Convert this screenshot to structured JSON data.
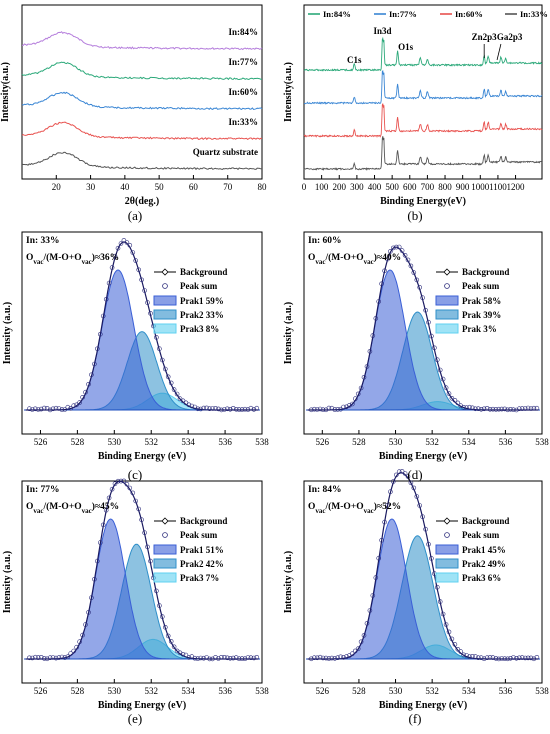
{
  "captions": [
    "(a)",
    "(b)",
    "(c)",
    "(d)",
    "(e)",
    "(f)"
  ],
  "chart_data": [
    {
      "type": "line",
      "xlabel": "2θ(deg.)",
      "ylabel": "Intensity(a.u.)",
      "xlim": [
        10,
        80
      ],
      "xticks": [
        20,
        30,
        40,
        50,
        60,
        70,
        80
      ],
      "grid": false,
      "series": [
        {
          "name": "In:84%",
          "color": "#b57edc",
          "offset": 4
        },
        {
          "name": "In:77%",
          "color": "#2ca97a",
          "offset": 3
        },
        {
          "name": "In:60%",
          "color": "#3a86d4",
          "offset": 2
        },
        {
          "name": "In:33%",
          "color": "#e8524f",
          "offset": 1
        },
        {
          "name": "Quartz substrate",
          "color": "#555555",
          "offset": 0
        }
      ],
      "peak_center": 22
    },
    {
      "type": "line",
      "xlabel": "Binding Energy(eV)",
      "ylabel": "Intensity(a.u.)",
      "xlim": [
        0,
        1350
      ],
      "xticks": [
        0,
        100,
        200,
        300,
        400,
        500,
        600,
        700,
        800,
        900,
        1000,
        1100,
        1200
      ],
      "legend": "top",
      "grid": false,
      "series": [
        {
          "name": "In:84%",
          "color": "#2ca97a",
          "offset": 3
        },
        {
          "name": "In:77%",
          "color": "#3a86d4",
          "offset": 2
        },
        {
          "name": "In:60%",
          "color": "#e8524f",
          "offset": 1
        },
        {
          "name": "In:33%",
          "color": "#555555",
          "offset": 0
        }
      ],
      "annotations": [
        {
          "text": "C1s",
          "x": 285
        },
        {
          "text": "In3d",
          "x": 445
        },
        {
          "text": "O1s",
          "x": 531
        },
        {
          "text": "Zn2p3",
          "x": 1022
        },
        {
          "text": "Ga2p3",
          "x": 1117
        }
      ]
    },
    {
      "type": "area",
      "title": "In:  33%",
      "ovac_ratio": "≈36%",
      "xlabel": "Binding Energy (eV)",
      "ylabel": "Intensity  (a.u.)",
      "xlim": [
        525,
        538
      ],
      "xticks": [
        526,
        528,
        530,
        532,
        534,
        536,
        538
      ],
      "legend": "top-right",
      "peaks": [
        {
          "name": "Prak1 59%",
          "center": 530.2,
          "height": 1.0,
          "sigma": 0.85
        },
        {
          "name": "Prak2 33%",
          "center": 531.5,
          "height": 0.56,
          "sigma": 0.8
        },
        {
          "name": "Prak3 8%",
          "center": 532.6,
          "height": 0.12,
          "sigma": 0.8
        }
      ]
    },
    {
      "type": "area",
      "title": "In:  60%",
      "ovac_ratio": "≈40%",
      "xlabel": "Binding Energy (eV)",
      "ylabel": "Intensity  (a.u.)",
      "xlim": [
        525,
        538
      ],
      "xticks": [
        526,
        528,
        530,
        532,
        534,
        536,
        538
      ],
      "legend": "top-right",
      "peaks": [
        {
          "name": "Prak 58%",
          "center": 529.7,
          "height": 1.0,
          "sigma": 0.82
        },
        {
          "name": "Prak 39%",
          "center": 531.2,
          "height": 0.7,
          "sigma": 0.8
        },
        {
          "name": "Prak 3%",
          "center": 532.3,
          "height": 0.06,
          "sigma": 0.8
        }
      ]
    },
    {
      "type": "area",
      "title": "In:  77%",
      "ovac_ratio": "≈45%",
      "xlabel": "Binding Energy (eV)",
      "ylabel": "Intensity (a.u.)",
      "xlim": [
        525,
        538
      ],
      "xticks": [
        526,
        528,
        530,
        532,
        534,
        536,
        538
      ],
      "legend": "top-right",
      "peaks": [
        {
          "name": "Prak1 51%",
          "center": 529.8,
          "height": 1.0,
          "sigma": 0.8
        },
        {
          "name": "Prak2 42%",
          "center": 531.2,
          "height": 0.82,
          "sigma": 0.8
        },
        {
          "name": "Prak3 7%",
          "center": 532.1,
          "height": 0.14,
          "sigma": 0.8
        }
      ]
    },
    {
      "type": "area",
      "title": "In:  84%",
      "ovac_ratio": "≈52%",
      "xlabel": "Binding Energy (eV)",
      "ylabel": "Intensity (a.u.)",
      "xlim": [
        525,
        538
      ],
      "xticks": [
        526,
        528,
        530,
        532,
        534,
        536,
        538
      ],
      "legend": "top-right",
      "peaks": [
        {
          "name": "Prak1 45%",
          "center": 529.8,
          "height": 1.0,
          "sigma": 0.8
        },
        {
          "name": "Prak2 49%",
          "center": 531.2,
          "height": 0.88,
          "sigma": 0.85
        },
        {
          "name": "Prak3 6%",
          "center": 532.2,
          "height": 0.1,
          "sigma": 0.8
        }
      ]
    }
  ],
  "xps_legend": {
    "background": "Background",
    "peak_sum": "Peak sum"
  },
  "colors": {
    "peak1": "#3a5fd6",
    "peak2": "#2f8fc9",
    "peak3": "#5fd0f0",
    "envelope": "#1a1a60"
  }
}
